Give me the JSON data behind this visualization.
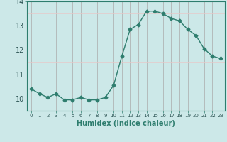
{
  "x": [
    0,
    1,
    2,
    3,
    4,
    5,
    6,
    7,
    8,
    9,
    10,
    11,
    12,
    13,
    14,
    15,
    16,
    17,
    18,
    19,
    20,
    21,
    22,
    23
  ],
  "y": [
    10.4,
    10.2,
    10.05,
    10.2,
    9.95,
    9.95,
    10.05,
    9.95,
    9.95,
    10.05,
    10.55,
    11.75,
    12.85,
    13.05,
    13.6,
    13.6,
    13.5,
    13.3,
    13.2,
    12.85,
    12.6,
    12.05,
    11.75,
    11.65
  ],
  "line_color": "#2e7d6e",
  "marker": "D",
  "marker_size": 2.5,
  "bg_color": "#cce8e8",
  "minor_grid_color": "#e8c8c8",
  "major_grid_color": "#aaaaaa",
  "xlabel": "Humidex (Indice chaleur)",
  "ylim": [
    9.5,
    14.0
  ],
  "xlim": [
    -0.5,
    23.5
  ],
  "yticks": [
    10,
    11,
    12,
    13,
    14
  ],
  "xticks": [
    0,
    1,
    2,
    3,
    4,
    5,
    6,
    7,
    8,
    9,
    10,
    11,
    12,
    13,
    14,
    15,
    16,
    17,
    18,
    19,
    20,
    21,
    22,
    23
  ]
}
